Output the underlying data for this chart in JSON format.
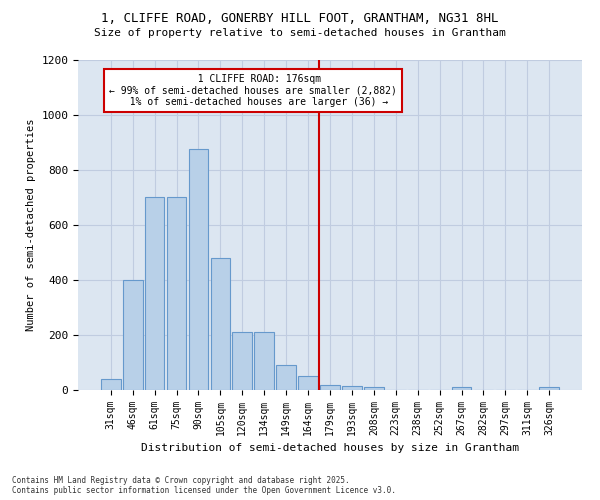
{
  "title_line1": "1, CLIFFE ROAD, GONERBY HILL FOOT, GRANTHAM, NG31 8HL",
  "title_line2": "Size of property relative to semi-detached houses in Grantham",
  "xlabel": "Distribution of semi-detached houses by size in Grantham",
  "ylabel": "Number of semi-detached properties",
  "bar_labels": [
    "31sqm",
    "46sqm",
    "61sqm",
    "75sqm",
    "90sqm",
    "105sqm",
    "120sqm",
    "134sqm",
    "149sqm",
    "164sqm",
    "179sqm",
    "193sqm",
    "208sqm",
    "223sqm",
    "238sqm",
    "252sqm",
    "267sqm",
    "282sqm",
    "297sqm",
    "311sqm",
    "326sqm"
  ],
  "bar_values": [
    40,
    400,
    700,
    700,
    875,
    480,
    210,
    210,
    90,
    50,
    20,
    15,
    10,
    0,
    0,
    0,
    10,
    0,
    0,
    0,
    10
  ],
  "bar_color": "#b8d0e8",
  "bar_edge_color": "#6699cc",
  "vline_index": 10,
  "vline_label": "1 CLIFFE ROAD: 176sqm",
  "vline_pct_smaller": "99% of semi-detached houses are smaller (2,882)",
  "vline_pct_larger": "1% of semi-detached houses are larger (36)",
  "vline_color": "#cc0000",
  "annotation_box_edgecolor": "#cc0000",
  "ylim": [
    0,
    1200
  ],
  "yticks": [
    0,
    200,
    400,
    600,
    800,
    1000,
    1200
  ],
  "grid_color": "#c0cce0",
  "background_color": "#dce6f1",
  "footer_line1": "Contains HM Land Registry data © Crown copyright and database right 2025.",
  "footer_line2": "Contains public sector information licensed under the Open Government Licence v3.0."
}
